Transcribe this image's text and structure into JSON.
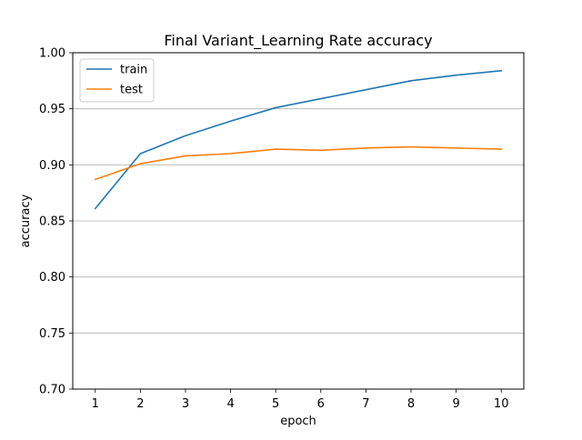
{
  "chart_data": {
    "type": "line",
    "title": "Final Variant_Learning Rate accuracy",
    "xlabel": "epoch",
    "ylabel": "accuracy",
    "x": [
      1,
      2,
      3,
      4,
      5,
      6,
      7,
      8,
      9,
      10
    ],
    "xlim": [
      0.5,
      10.5
    ],
    "ylim": [
      0.7,
      1.0
    ],
    "xticks": [
      1,
      2,
      3,
      4,
      5,
      6,
      7,
      8,
      9,
      10
    ],
    "xtick_labels": [
      "1",
      "2",
      "3",
      "4",
      "5",
      "6",
      "7",
      "8",
      "9",
      "10"
    ],
    "yticks": [
      0.7,
      0.75,
      0.8,
      0.85,
      0.9,
      0.95,
      1.0
    ],
    "ytick_labels": [
      "0.70",
      "0.75",
      "0.80",
      "0.85",
      "0.90",
      "0.95",
      "1.00"
    ],
    "grid": "horizontal",
    "legend_placement": "upper-left",
    "series": [
      {
        "name": "train",
        "color": "#1f77b4",
        "values": [
          0.861,
          0.91,
          0.926,
          0.939,
          0.951,
          0.959,
          0.967,
          0.975,
          0.98,
          0.984
        ]
      },
      {
        "name": "test",
        "color": "#ff7f0e",
        "values": [
          0.887,
          0.901,
          0.908,
          0.91,
          0.914,
          0.913,
          0.915,
          0.916,
          0.915,
          0.914
        ]
      }
    ]
  }
}
